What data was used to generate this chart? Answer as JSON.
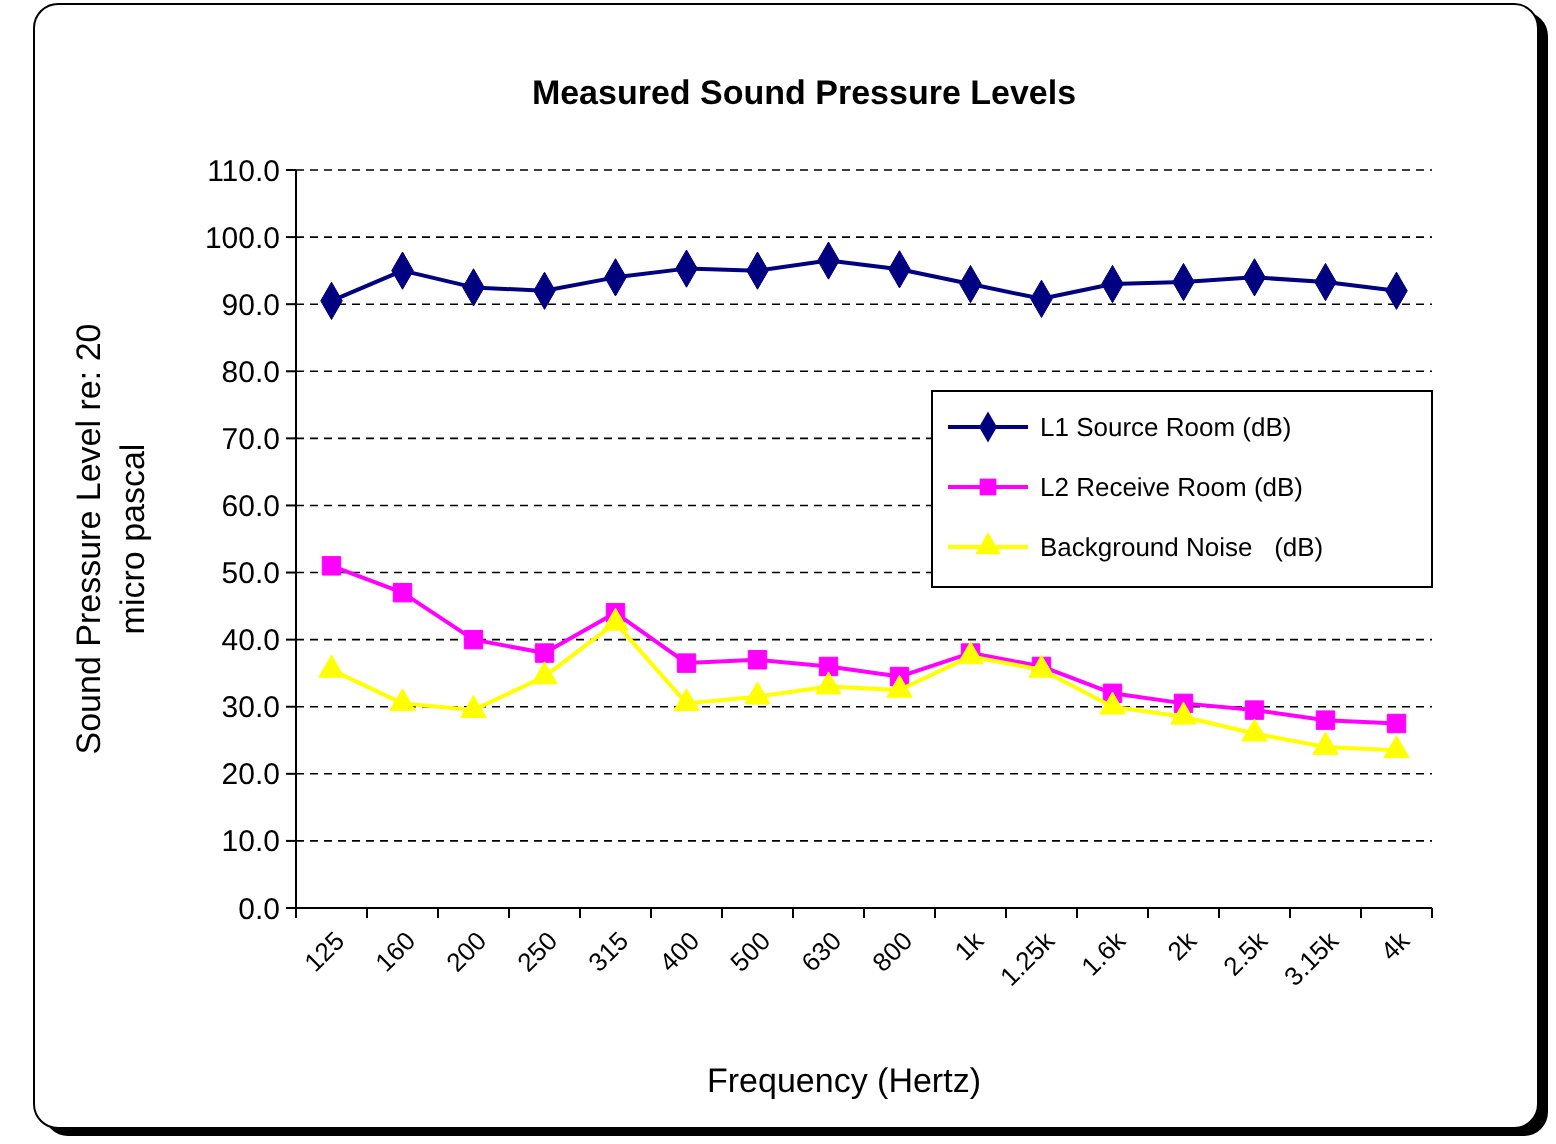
{
  "chart_data": {
    "type": "line",
    "title": "Measured Sound Pressure Levels",
    "xlabel": "Frequency (Hertz)",
    "ylabel": "Sound Pressure Level re: 20 micro pascal",
    "categories": [
      "125",
      "160",
      "200",
      "250",
      "315",
      "400",
      "500",
      "630",
      "800",
      "1k",
      "1.25k",
      "1.6k",
      "2k",
      "2.5k",
      "3.15k",
      "4k"
    ],
    "series": [
      {
        "name": "L1 Source Room (dB)",
        "color": "#000080",
        "marker": "diamond",
        "values": [
          90.5,
          95,
          92.5,
          92,
          94,
          95.3,
          95,
          96.5,
          95.2,
          93,
          90.8,
          93,
          93.3,
          94,
          93.3,
          92
        ]
      },
      {
        "name": "L2 Receive Room (dB)",
        "color": "#ff00ff",
        "marker": "square",
        "values": [
          51,
          47,
          40,
          38,
          44,
          36.5,
          37,
          36,
          34.5,
          38,
          36,
          32,
          30.5,
          29.5,
          28,
          27.5
        ]
      },
      {
        "name": "Background Noise   (dB)",
        "color": "#ffff00",
        "marker": "triangle",
        "values": [
          35.5,
          30.5,
          29.5,
          34.5,
          42.5,
          30.5,
          31.5,
          33,
          32.5,
          37.5,
          35.5,
          30,
          28.5,
          26,
          24,
          23.5
        ]
      }
    ],
    "ylim": [
      0,
      110
    ],
    "yticks": [
      {
        "value": 0,
        "label": "0.0"
      },
      {
        "value": 10,
        "label": "10.0"
      },
      {
        "value": 20,
        "label": "20.0"
      },
      {
        "value": 30,
        "label": "30.0"
      },
      {
        "value": 40,
        "label": "40.0"
      },
      {
        "value": 50,
        "label": "50.0"
      },
      {
        "value": 60,
        "label": "60.0"
      },
      {
        "value": 70,
        "label": "70.0"
      },
      {
        "value": 80,
        "label": "80.0"
      },
      {
        "value": 90,
        "label": "90.0"
      },
      {
        "value": 100,
        "label": "100.0"
      },
      {
        "value": 110,
        "label": "110.0"
      }
    ],
    "grid": "y",
    "legend": "right",
    "line_style": "solid"
  }
}
